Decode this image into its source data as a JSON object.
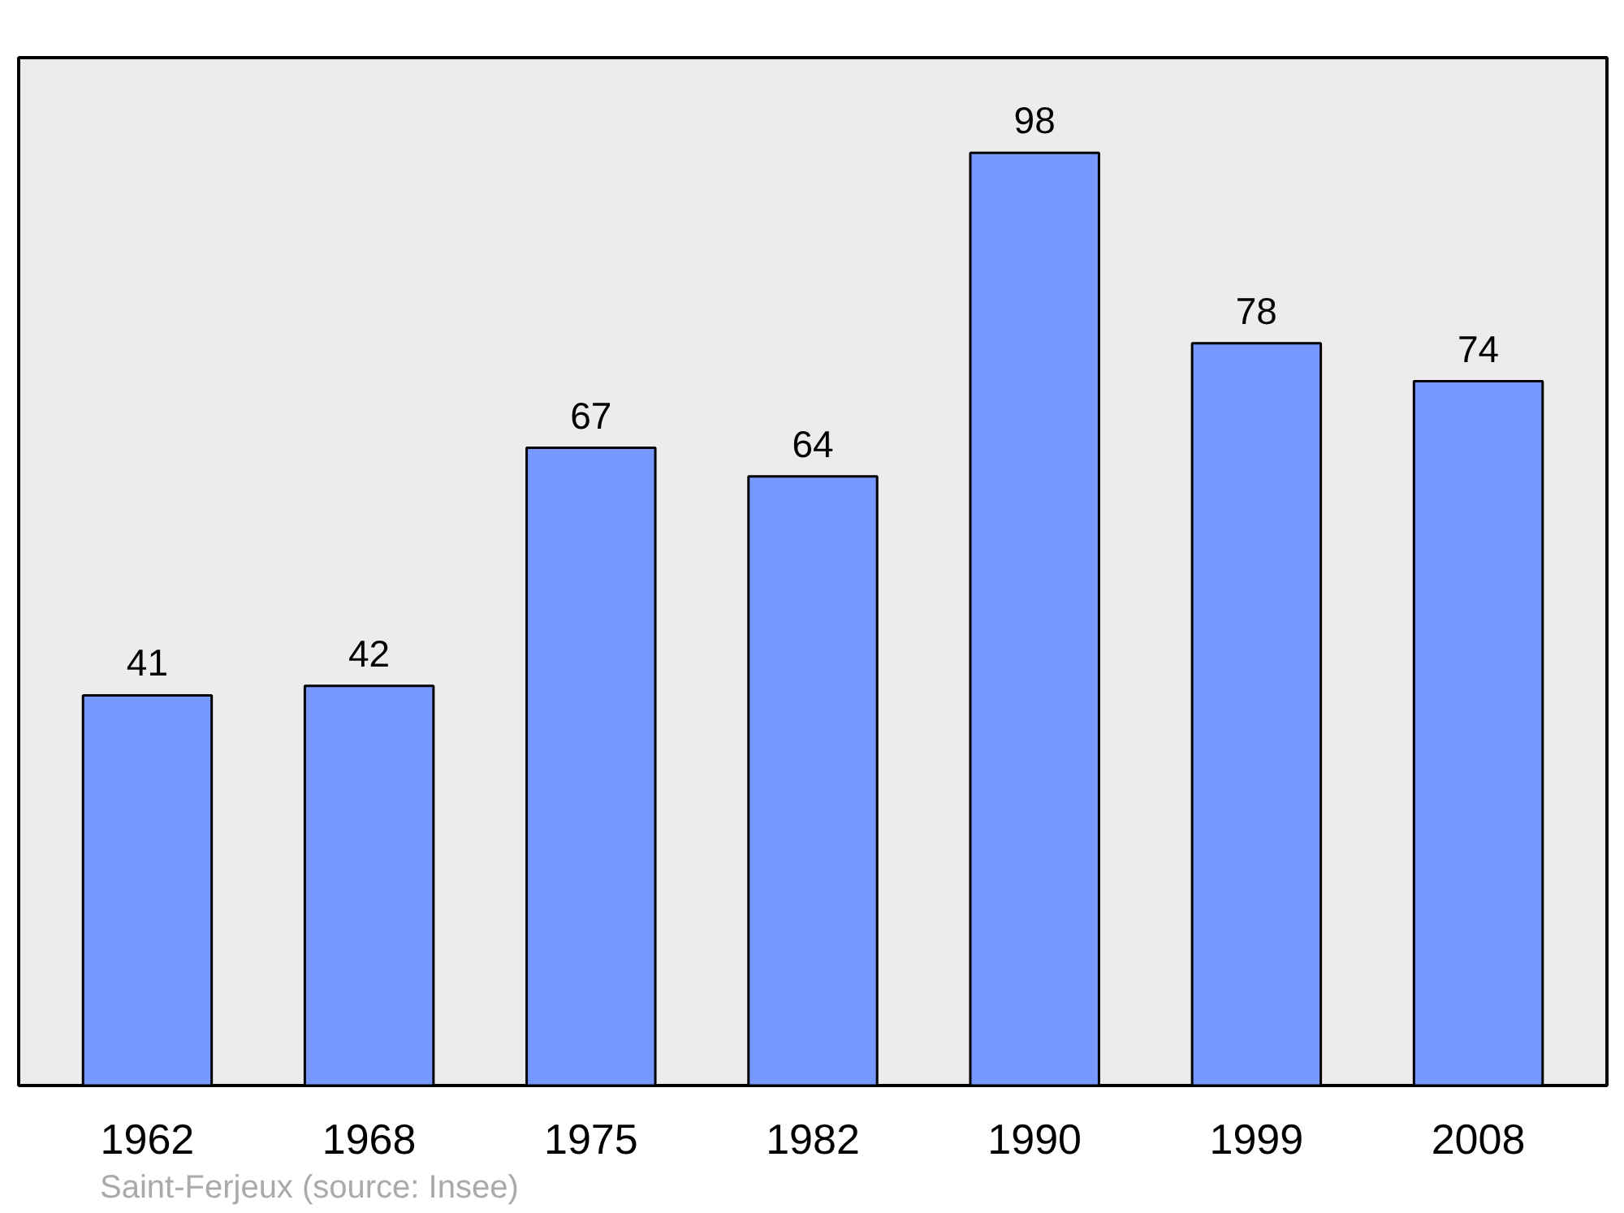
{
  "chart_data": {
    "type": "bar",
    "categories": [
      "1962",
      "1968",
      "1975",
      "1982",
      "1990",
      "1999",
      "2008"
    ],
    "values": [
      41,
      42,
      67,
      64,
      98,
      78,
      74
    ],
    "color": "#7799ff",
    "ylim": [
      0,
      108
    ],
    "data_labels": true,
    "grid": false,
    "annotations": [
      "Saint-Ferjeux    (source: Insee)"
    ]
  }
}
